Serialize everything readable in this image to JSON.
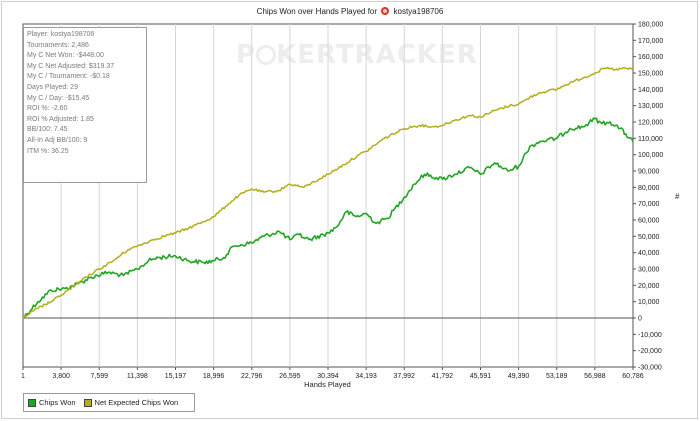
{
  "title": {
    "prefix": "Chips Won over Hands Played for",
    "player": "kostya198706"
  },
  "watermark": {
    "left": "P",
    "right": "KERTRACKER"
  },
  "stats": [
    "Player: kostya198706",
    "Tournaments: 2,486",
    "My C Net Won: -$448.00",
    "My C Net Adjusted: $319.37",
    "My C / Tournament: -$0.18",
    "Days Played: 29",
    "My C / Day: -$15.45",
    "ROI %: -2.60",
    "ROI % Adjusted: 1.85",
    "BB/100: 7.45",
    "All-In Adj BB/100: 9",
    "ITM %: 36.25"
  ],
  "legend": {
    "chips_won": "Chips Won",
    "net_expected": "Net Expected Chips Won"
  },
  "colors": {
    "chips_won": "#22a522",
    "net_expected": "#b3ae1a"
  },
  "chart_data": {
    "type": "line",
    "title": "Chips Won over Hands Played for kostya198706",
    "xlabel": "Hands Played",
    "ylabel": "#",
    "x_ticks": [
      "1",
      "3,800",
      "7,599",
      "11,398",
      "15,197",
      "18,996",
      "22,796",
      "26,595",
      "30,394",
      "34,193",
      "37,992",
      "41,792",
      "45,591",
      "49,390",
      "53,189",
      "56,988",
      "60,786"
    ],
    "xlim": [
      1,
      60786
    ],
    "ylim": [
      -30000,
      180000
    ],
    "y_ticks": [
      -30000,
      -20000,
      -10000,
      0,
      10000,
      20000,
      30000,
      40000,
      50000,
      60000,
      70000,
      80000,
      90000,
      100000,
      110000,
      120000,
      130000,
      140000,
      150000,
      160000,
      170000,
      180000
    ],
    "y_tick_labels": [
      "-30,000",
      "-20,000",
      "-10,000",
      "0",
      "10,000",
      "20,000",
      "30,000",
      "40,000",
      "50,000",
      "60,000",
      "70,000",
      "80,000",
      "90,000",
      "100,000",
      "110,000",
      "120,000",
      "130,000",
      "140,000",
      "150,000",
      "160,000",
      "170,000",
      "180,000"
    ],
    "grid": "vertical",
    "legend_position": "bottom-left",
    "series": [
      {
        "name": "Chips Won",
        "x": [
          1,
          1500,
          2800,
          4200,
          5500,
          6800,
          8500,
          10000,
          11400,
          12500,
          13500,
          15200,
          16500,
          18000,
          19000,
          20000,
          21000,
          22800,
          24000,
          25500,
          26600,
          27500,
          28500,
          30400,
          31300,
          32200,
          33200,
          34200,
          35200,
          36300,
          38000,
          39000,
          40000,
          41800,
          43000,
          44500,
          45600,
          47000,
          48300,
          49400,
          50500,
          51500,
          53200,
          54500,
          55800,
          57000,
          57700,
          58500,
          59500,
          60786
        ],
        "y": [
          0,
          10000,
          17000,
          18000,
          21000,
          25000,
          28000,
          26000,
          30000,
          35000,
          37000,
          38000,
          35000,
          34000,
          35000,
          37000,
          44000,
          46000,
          50000,
          53000,
          48000,
          51000,
          48000,
          52000,
          56000,
          65000,
          62000,
          64000,
          58000,
          61000,
          74000,
          82000,
          88000,
          85000,
          88000,
          92000,
          88000,
          95000,
          90000,
          93000,
          105000,
          108000,
          110000,
          116000,
          117000,
          122000,
          119000,
          120000,
          116000,
          108000
        ]
      },
      {
        "name": "Net Expected Chips Won",
        "x": [
          1,
          1500,
          2800,
          3800,
          5200,
          6300,
          7600,
          9000,
          10500,
          11400,
          13000,
          14500,
          15200,
          16500,
          18000,
          19000,
          20500,
          21500,
          22800,
          24000,
          25500,
          26600,
          28000,
          29500,
          30400,
          32000,
          33500,
          34200,
          36000,
          38000,
          39500,
          41000,
          41800,
          43000,
          44500,
          45600,
          47000,
          48500,
          49400,
          50500,
          51500,
          53200,
          54500,
          55800,
          57000,
          58000,
          59000,
          60000,
          60786
        ],
        "y": [
          0,
          6000,
          10000,
          14000,
          20000,
          25000,
          30000,
          35000,
          42000,
          44000,
          48000,
          51000,
          52000,
          55000,
          59000,
          62000,
          70000,
          75000,
          79000,
          77000,
          78000,
          82000,
          80000,
          85000,
          88000,
          94000,
          100000,
          102000,
          110000,
          116000,
          118000,
          117000,
          118000,
          121000,
          124000,
          123000,
          127000,
          130000,
          131000,
          135000,
          138000,
          140000,
          144000,
          147000,
          150000,
          153000,
          152000,
          153000,
          152000
        ]
      }
    ]
  }
}
